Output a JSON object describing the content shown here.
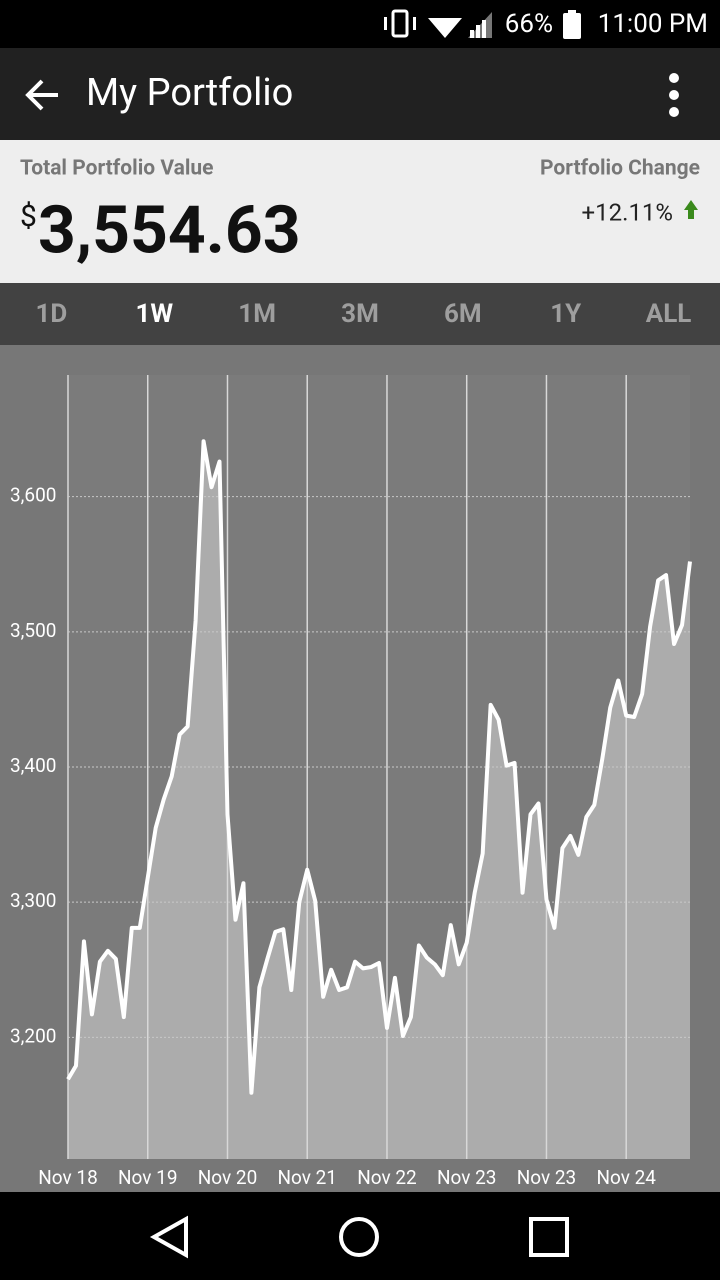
{
  "status_bar": {
    "battery": "66%",
    "time": "11:00 PM"
  },
  "app_bar": {
    "title": "My Portfolio"
  },
  "summary": {
    "value_label": "Total Portfolio Value",
    "currency": "$",
    "value": "3,554.63",
    "change_label": "Portfolio Change",
    "change": "+12.11%"
  },
  "tabs": {
    "items": [
      "1D",
      "1W",
      "1M",
      "3M",
      "6M",
      "1Y",
      "ALL"
    ],
    "active": 1
  },
  "chart_data": {
    "type": "area",
    "color": "#ffffff",
    "fill_color": "#acacac",
    "grid": true,
    "x": [
      0,
      0.1,
      0.2,
      0.3,
      0.4,
      0.5,
      0.6,
      0.7,
      0.8,
      0.9,
      1,
      1.1,
      1.2,
      1.3,
      1.4,
      1.5,
      1.6,
      1.7,
      1.8,
      1.9,
      2,
      2.1,
      2.2,
      2.3,
      2.4,
      2.5,
      2.6,
      2.7,
      2.8,
      2.9,
      3,
      3.1,
      3.2,
      3.3,
      3.4,
      3.5,
      3.6,
      3.7,
      3.8,
      3.9,
      4,
      4.1,
      4.2,
      4.3,
      4.4,
      4.5,
      4.6,
      4.7,
      4.8,
      4.9,
      5,
      5.1,
      5.2,
      5.3,
      5.4,
      5.5,
      5.6,
      5.7,
      5.8,
      5.9,
      6,
      6.1,
      6.2,
      6.3,
      6.4,
      6.5,
      6.6,
      6.7,
      6.8,
      6.9,
      7,
      7.1,
      7.2,
      7.3,
      7.4,
      7.5,
      7.6,
      7.7,
      7.8
    ],
    "values": [
      3169,
      3179,
      3271,
      3217,
      3256,
      3264,
      3258,
      3215,
      3281,
      3281,
      3318,
      3355,
      3376,
      3393,
      3424,
      3430,
      3508,
      3641,
      3607,
      3626,
      3365,
      3287,
      3314,
      3159,
      3237,
      3258,
      3278,
      3280,
      3235,
      3300,
      3324,
      3301,
      3230,
      3250,
      3235,
      3237,
      3256,
      3251,
      3252,
      3255,
      3207,
      3244,
      3201,
      3215,
      3268,
      3259,
      3254,
      3246,
      3283,
      3254,
      3270,
      3307,
      3336,
      3446,
      3435,
      3401,
      3403,
      3307,
      3365,
      3373,
      3302,
      3281,
      3340,
      3349,
      3335,
      3363,
      3372,
      3406,
      3444,
      3464,
      3438,
      3437,
      3454,
      3504,
      3538,
      3542,
      3491,
      3505,
      3552
    ],
    "xlim": [
      0,
      7.8
    ],
    "xticks": [
      {
        "value": 0,
        "label": "Nov 18"
      },
      {
        "value": 1,
        "label": "Nov 19"
      },
      {
        "value": 2,
        "label": "Nov 20"
      },
      {
        "value": 3,
        "label": "Nov 21"
      },
      {
        "value": 4,
        "label": "Nov 22"
      },
      {
        "value": 5,
        "label": "Nov 23"
      },
      {
        "value": 6,
        "label": "Nov 23"
      },
      {
        "value": 7,
        "label": "Nov 24"
      }
    ],
    "ylim": [
      3110,
      3690
    ],
    "yticks": [
      {
        "value": 3200,
        "label": "3,200"
      },
      {
        "value": 3300,
        "label": "3,300"
      },
      {
        "value": 3400,
        "label": "3,400"
      },
      {
        "value": 3500,
        "label": "3,500"
      },
      {
        "value": 3600,
        "label": "3,600"
      }
    ]
  }
}
